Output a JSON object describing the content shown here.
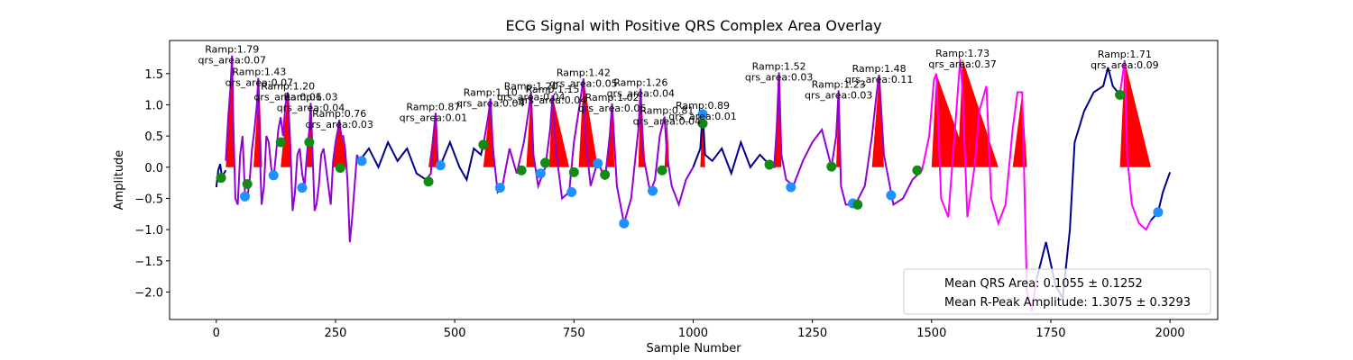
{
  "chart_data": {
    "type": "line",
    "title": "ECG Signal with Positive QRS Complex Area Overlay",
    "xlabel": "Sample Number",
    "ylabel": "Amplitude",
    "xlim": [
      -98,
      2100
    ],
    "ylim": [
      -2.44,
      2.03
    ],
    "xticks": [
      0,
      250,
      500,
      750,
      1000,
      1250,
      1500,
      1750,
      2000
    ],
    "yticks": [
      {
        "value": -2.0,
        "label": "−2.0"
      },
      {
        "value": -1.5,
        "label": "−1.5"
      },
      {
        "value": -1.0,
        "label": "−1.0"
      },
      {
        "value": -0.5,
        "label": "−0.5"
      },
      {
        "value": 0.0,
        "label": "0.0"
      },
      {
        "value": 0.5,
        "label": "0.5"
      },
      {
        "value": 1.0,
        "label": "1.0"
      },
      {
        "value": 1.5,
        "label": "1.5"
      }
    ],
    "areas_color": "#ff0000",
    "areas": [
      {
        "x": [
          20,
          33,
          38
        ],
        "values": [
          0,
          1.79,
          0
        ]
      },
      {
        "x": [
          78,
          90,
          96
        ],
        "values": [
          0,
          1.43,
          0
        ]
      },
      {
        "x": [
          135,
          150,
          156
        ],
        "values": [
          0,
          1.2,
          0
        ]
      },
      {
        "x": [
          190,
          198,
          204
        ],
        "values": [
          0,
          1.03,
          0
        ]
      },
      {
        "x": [
          245,
          258,
          275
        ],
        "values": [
          0,
          0.76,
          0
        ]
      },
      {
        "x": [
          445,
          460,
          465
        ],
        "values": [
          0,
          0.87,
          0
        ]
      },
      {
        "x": [
          560,
          575,
          585
        ],
        "values": [
          0,
          1.1,
          0
        ]
      },
      {
        "x": [
          650,
          660,
          668
        ],
        "values": [
          0,
          1.2,
          0
        ]
      },
      {
        "x": [
          698,
          705,
          740
        ],
        "values": [
          0,
          1.15,
          0
        ]
      },
      {
        "x": [
          760,
          770,
          800
        ],
        "values": [
          0,
          1.42,
          0
        ]
      },
      {
        "x": [
          820,
          830,
          835
        ],
        "values": [
          0,
          1.02,
          0
        ]
      },
      {
        "x": [
          885,
          890,
          900
        ],
        "values": [
          0,
          1.26,
          0
        ]
      },
      {
        "x": [
          940,
          945,
          950
        ],
        "values": [
          0,
          0.81,
          0
        ]
      },
      {
        "x": [
          1015,
          1020,
          1025
        ],
        "values": [
          0,
          0.89,
          0
        ]
      },
      {
        "x": [
          1170,
          1180,
          1185
        ],
        "values": [
          0,
          1.52,
          0
        ]
      },
      {
        "x": [
          1300,
          1305,
          1310
        ],
        "values": [
          0,
          1.23,
          0
        ]
      },
      {
        "x": [
          1375,
          1390,
          1400
        ],
        "values": [
          0,
          1.48,
          0
        ]
      },
      {
        "x": [
          1500,
          1510,
          1580
        ],
        "values": [
          0,
          1.5,
          0
        ]
      },
      {
        "x": [
          1555,
          1565,
          1640
        ],
        "values": [
          0,
          1.73,
          0
        ]
      },
      {
        "x": [
          1670,
          1690,
          1700
        ],
        "values": [
          0,
          1.2,
          0
        ]
      },
      {
        "x": [
          1895,
          1905,
          1960
        ],
        "values": [
          0,
          1.71,
          0
        ]
      }
    ],
    "series": [
      {
        "color": "#00008b",
        "x": [
          0,
          4,
          8,
          12,
          16,
          20
        ],
        "values": [
          -0.32,
          -0.05,
          0.05,
          -0.15,
          -0.1,
          -0.05
        ]
      },
      {
        "color": "#9400d3",
        "x": [
          20,
          25,
          30,
          33,
          36,
          40,
          45,
          50,
          55,
          60,
          65,
          70,
          75,
          80,
          85,
          88,
          91,
          95,
          100,
          105,
          110,
          115,
          120,
          125,
          130,
          135,
          140,
          145,
          150,
          155,
          160,
          165,
          170,
          175,
          180,
          185,
          190,
          195,
          198,
          202,
          206,
          210,
          215,
          220,
          225,
          230,
          235,
          240,
          245,
          250,
          255,
          258,
          262,
          266,
          270,
          275,
          280,
          285,
          290,
          295,
          300
        ],
        "values": [
          0.1,
          0.8,
          1.3,
          1.79,
          0.6,
          -0.5,
          -0.6,
          0.2,
          0.5,
          -0.4,
          -0.5,
          -0.2,
          0.3,
          0.6,
          1.0,
          1.43,
          0.3,
          -0.6,
          -0.3,
          0.5,
          0.4,
          0.0,
          -0.2,
          0.2,
          0.6,
          0.8,
          0.5,
          1.0,
          1.2,
          0.4,
          -0.7,
          -0.4,
          0.2,
          0.3,
          -0.1,
          -0.3,
          0.2,
          0.6,
          1.03,
          0.2,
          -0.7,
          -0.6,
          -0.3,
          0.2,
          0.3,
          0.0,
          -0.3,
          -0.6,
          0.1,
          0.4,
          0.6,
          0.76,
          0.5,
          0.5,
          0.3,
          -0.2,
          -1.2,
          -0.8,
          -0.3,
          0.2,
          0.1
        ]
      },
      {
        "color": "#00008b",
        "x": [
          300,
          320,
          340,
          360,
          380,
          400,
          420,
          440
        ],
        "values": [
          0.1,
          0.3,
          0.0,
          0.4,
          0.1,
          0.3,
          -0.1,
          -0.2
        ]
      },
      {
        "color": "#9400d3",
        "x": [
          440,
          450,
          455,
          460,
          465,
          470
        ],
        "values": [
          -0.2,
          -0.1,
          0.5,
          0.87,
          0.0,
          0.03
        ]
      },
      {
        "color": "#00008b",
        "x": [
          470,
          490,
          510,
          525,
          540,
          555,
          560
        ],
        "values": [
          0.03,
          0.4,
          0.0,
          -0.2,
          0.3,
          0.2,
          0.36
        ]
      },
      {
        "color": "#9400d3",
        "x": [
          560,
          570,
          575,
          580,
          590,
          600,
          615,
          630,
          645,
          655,
          660,
          665,
          675,
          690,
          700,
          705,
          712,
          725,
          740,
          750,
          760,
          770,
          775,
          785,
          800,
          815,
          825,
          830,
          840,
          855,
          870,
          885,
          890,
          895,
          910,
          920,
          930,
          940,
          945,
          955,
          970,
          985,
          1000
        ],
        "values": [
          0.36,
          0.8,
          1.1,
          0.3,
          -0.4,
          -0.3,
          0.3,
          -0.1,
          0.4,
          0.9,
          1.2,
          0.2,
          -0.3,
          0.0,
          0.6,
          1.15,
          0.3,
          -0.5,
          -0.4,
          0.4,
          0.9,
          1.42,
          0.4,
          -0.3,
          0.1,
          -0.2,
          0.5,
          1.02,
          -0.3,
          -0.9,
          -0.5,
          0.6,
          1.26,
          0.2,
          -0.4,
          -0.2,
          0.5,
          0.81,
          0.2,
          -0.3,
          -0.6,
          -0.2,
          0.0
        ]
      },
      {
        "color": "#00008b",
        "x": [
          1000,
          1015,
          1020,
          1025,
          1040,
          1060,
          1080,
          1100,
          1120,
          1140,
          1160
        ],
        "values": [
          0.0,
          0.3,
          0.89,
          0.2,
          0.1,
          0.3,
          -0.1,
          0.4,
          0.0,
          0.2,
          0.04
        ]
      },
      {
        "color": "#9400d3",
        "x": [
          1160,
          1170,
          1175,
          1180,
          1185,
          1195,
          1210,
          1230,
          1250,
          1270,
          1290,
          1300,
          1305,
          1310,
          1320,
          1340,
          1360,
          1375,
          1385,
          1390,
          1400,
          1420,
          1440,
          1460,
          1480
        ],
        "values": [
          0.04,
          0.0,
          0.6,
          1.52,
          0.2,
          -0.2,
          -0.3,
          0.1,
          0.4,
          0.6,
          0.0,
          0.5,
          1.23,
          -0.3,
          -0.6,
          -0.6,
          -0.3,
          0.5,
          1.2,
          1.48,
          0.2,
          -0.6,
          -0.5,
          -0.2,
          -0.05
        ]
      },
      {
        "color": "#ff00ff",
        "x": [
          1480,
          1495,
          1505,
          1510,
          1520,
          1535,
          1550,
          1560,
          1565,
          1575,
          1590,
          1600,
          1615,
          1625,
          1640,
          1655,
          1670,
          1680,
          1690,
          1700,
          1710,
          1720
        ],
        "values": [
          -0.05,
          0.5,
          1.4,
          1.5,
          -0.5,
          -0.8,
          0.7,
          1.73,
          1.2,
          -0.8,
          0.0,
          0.9,
          1.3,
          -0.5,
          -0.9,
          -0.6,
          0.6,
          1.2,
          1.2,
          -2.0,
          -2.3,
          -1.8
        ]
      },
      {
        "color": "#00008b",
        "x": [
          1720,
          1740,
          1760,
          1775,
          1790,
          1800,
          1820,
          1840,
          1860,
          1870,
          1880,
          1895
        ],
        "values": [
          -1.8,
          -1.2,
          -1.9,
          -2.1,
          -1.0,
          0.4,
          0.9,
          1.2,
          1.3,
          1.6,
          1.3,
          1.16
        ]
      },
      {
        "color": "#ff00ff",
        "x": [
          1895,
          1905,
          1910,
          1920,
          1935,
          1950,
          1960
        ],
        "values": [
          1.16,
          1.71,
          0.2,
          -0.6,
          -0.9,
          -1.0,
          -0.85
        ]
      },
      {
        "color": "#00008b",
        "x": [
          1960,
          1975,
          1985,
          2000
        ],
        "values": [
          -0.85,
          -0.72,
          -0.4,
          -0.08
        ]
      }
    ],
    "points": [
      {
        "color": "#1e90ff",
        "x": [
          60,
          120,
          180,
          305,
          470,
          595,
          680,
          745,
          800,
          855,
          915,
          1020,
          1205,
          1335,
          1415,
          1975
        ],
        "values": [
          -0.47,
          -0.13,
          -0.33,
          0.1,
          0.03,
          -0.33,
          -0.1,
          -0.4,
          0.06,
          -0.9,
          -0.38,
          0.85,
          -0.32,
          -0.58,
          -0.45,
          -0.72
        ]
      },
      {
        "color": "#138a13",
        "x": [
          10,
          65,
          135,
          195,
          260,
          445,
          560,
          640,
          690,
          750,
          815,
          935,
          1020,
          1160,
          1290,
          1345,
          1470,
          1895
        ],
        "values": [
          -0.17,
          -0.27,
          0.4,
          0.4,
          -0.01,
          -0.23,
          0.36,
          -0.05,
          0.07,
          -0.08,
          -0.12,
          -0.05,
          0.7,
          0.04,
          0.01,
          -0.6,
          -0.05,
          1.16
        ]
      }
    ],
    "annotations": [
      {
        "x": 33,
        "y": 1.79,
        "lines": [
          "Ramp:1.79",
          "qrs_area:0.07"
        ]
      },
      {
        "x": 90,
        "y": 1.43,
        "lines": [
          "Ramp:1.43",
          "qrs_area:0.07"
        ]
      },
      {
        "x": 150,
        "y": 1.2,
        "lines": [
          "Ramp:1.20",
          "qrs_area:0.06"
        ]
      },
      {
        "x": 198,
        "y": 1.03,
        "lines": [
          "Ramp:1.03",
          "qrs_area:0.04"
        ]
      },
      {
        "x": 258,
        "y": 0.76,
        "lines": [
          "Ramp:0.76",
          "qrs_area:0.03"
        ]
      },
      {
        "x": 455,
        "y": 0.87,
        "lines": [
          "Ramp:0.87",
          "qrs_area:0.01"
        ]
      },
      {
        "x": 575,
        "y": 1.1,
        "lines": [
          "Ramp:1.10",
          "qrs_area:0.04"
        ]
      },
      {
        "x": 660,
        "y": 1.2,
        "lines": [
          "Ramp:1.20",
          "qrs_area:0.04"
        ]
      },
      {
        "x": 705,
        "y": 1.15,
        "lines": [
          "Ramp:1.15",
          "qrs_area:0.04"
        ]
      },
      {
        "x": 770,
        "y": 1.42,
        "lines": [
          "Ramp:1.42",
          "qrs_area:0.05"
        ]
      },
      {
        "x": 830,
        "y": 1.02,
        "lines": [
          "Ramp:1.02",
          "qrs_area:0.06"
        ]
      },
      {
        "x": 890,
        "y": 1.26,
        "lines": [
          "Ramp:1.26",
          "qrs_area:0.04"
        ]
      },
      {
        "x": 945,
        "y": 0.81,
        "lines": [
          "Ramp:0.81",
          "qrs_area:0.04"
        ]
      },
      {
        "x": 1020,
        "y": 0.89,
        "lines": [
          "Ramp:0.89",
          "qrs_area:0.01"
        ]
      },
      {
        "x": 1180,
        "y": 1.52,
        "lines": [
          "Ramp:1.52",
          "qrs_area:0.03"
        ]
      },
      {
        "x": 1305,
        "y": 1.23,
        "lines": [
          "Ramp:1.23",
          "qrs_area:0.03"
        ]
      },
      {
        "x": 1390,
        "y": 1.48,
        "lines": [
          "Ramp:1.48",
          "qrs_area:0.11"
        ]
      },
      {
        "x": 1565,
        "y": 1.73,
        "lines": [
          "Ramp:1.73",
          "qrs_area:0.37"
        ]
      },
      {
        "x": 1905,
        "y": 1.71,
        "lines": [
          "Ramp:1.71",
          "qrs_area:0.09"
        ]
      }
    ],
    "legend": "lower right",
    "legend_texts": [
      "Mean QRS Area: 0.1055 ± 0.1252",
      "Mean R-Peak Amplitude: 1.3075 ± 0.3293"
    ]
  }
}
